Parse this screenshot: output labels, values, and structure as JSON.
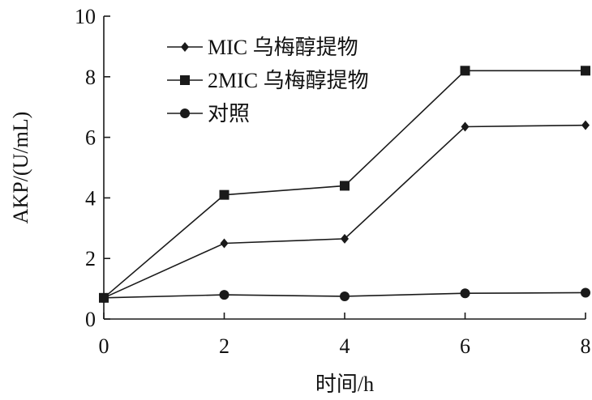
{
  "chart_data": {
    "type": "line",
    "title": "",
    "xlabel": "时间/h",
    "ylabel": "AKP/(U/mL)",
    "xlim": [
      0,
      8
    ],
    "ylim": [
      0,
      10
    ],
    "x_ticks": [
      "0",
      "2",
      "4",
      "6",
      "8"
    ],
    "y_ticks": [
      "0",
      "2",
      "4",
      "6",
      "8",
      "10"
    ],
    "x": [
      0,
      2,
      4,
      6,
      8
    ],
    "grid": false,
    "legend_position": "top-left",
    "series": [
      {
        "name": "MIC 乌梅醇提物",
        "marker": "diamond",
        "values": [
          0.7,
          2.5,
          2.65,
          6.35,
          6.4
        ]
      },
      {
        "name": "2MIC 乌梅醇提物",
        "marker": "square",
        "values": [
          0.7,
          4.1,
          4.4,
          8.2,
          8.2
        ]
      },
      {
        "name": "对照",
        "marker": "circle",
        "values": [
          0.7,
          0.8,
          0.75,
          0.85,
          0.87
        ]
      }
    ],
    "colors": {
      "line": "#1a1a1a",
      "marker": "#1a1a1a"
    }
  }
}
